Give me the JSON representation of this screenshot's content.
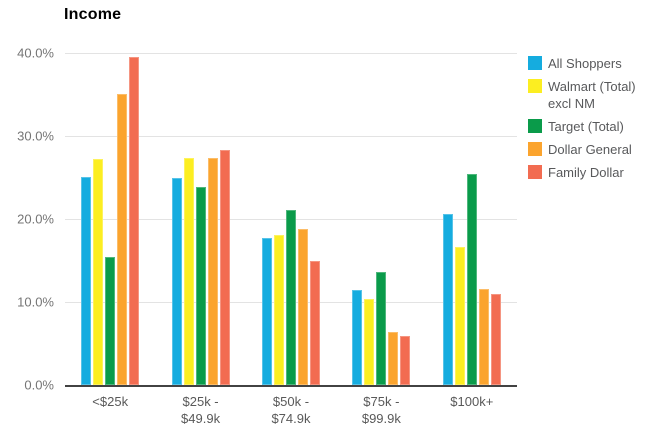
{
  "chart_data": {
    "type": "bar",
    "title": "Income",
    "categories": [
      "<$25k",
      "$25k - $49.9k",
      "$50k - $74.9k",
      "$75k - $99.9k",
      "$100k+"
    ],
    "series": [
      {
        "name": "All Shoppers",
        "color": "#15acdf",
        "values": [
          25.1,
          24.9,
          17.7,
          11.5,
          20.6
        ]
      },
      {
        "name": "Walmart (Total) excl NM",
        "color": "#fcee21",
        "values": [
          27.2,
          27.4,
          18.1,
          10.4,
          16.6
        ]
      },
      {
        "name": "Target (Total)",
        "color": "#0a9b4a",
        "values": [
          15.4,
          23.8,
          21.1,
          13.6,
          25.4
        ]
      },
      {
        "name": "Dollar General",
        "color": "#fba42e",
        "values": [
          35.1,
          27.4,
          18.8,
          6.4,
          11.6
        ]
      },
      {
        "name": "Family Dollar",
        "color": "#f26c51",
        "values": [
          39.5,
          28.3,
          15.0,
          5.9,
          11.0
        ]
      }
    ],
    "yticks": [
      {
        "value": 0,
        "label": "0.0%"
      },
      {
        "value": 10,
        "label": "10.0%"
      },
      {
        "value": 20,
        "label": "20.0%"
      },
      {
        "value": 30,
        "label": "30.0%"
      },
      {
        "value": 40,
        "label": "40.0%"
      }
    ],
    "ymax": 40,
    "xlabel": "",
    "ylabel": "",
    "grid": true,
    "legend_position": "right",
    "colors": {
      "grid_line": "#e3e3e3",
      "axis_line": "#424242",
      "y_label_text": "#757575",
      "x_label_text": "#595959",
      "legend_text": "#58595b",
      "title_text": "#000000",
      "background": "#ffffff"
    }
  }
}
